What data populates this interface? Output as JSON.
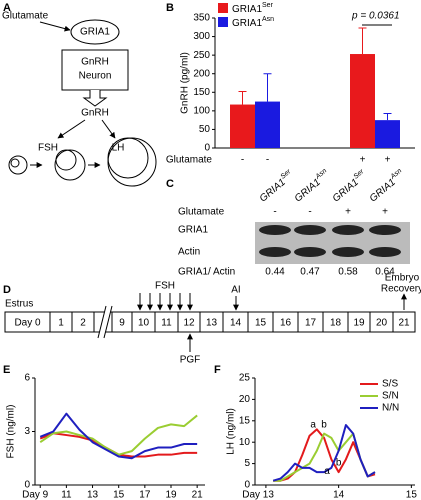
{
  "diagram": {
    "panel": "A",
    "glutamate": "Glutamate",
    "receptor": "GRIA1",
    "neuron": [
      "GnRH",
      "Neuron"
    ],
    "hormone": "GnRH",
    "outputs": [
      "FSH",
      "LH"
    ]
  },
  "chart_data": [
    {
      "type": "bar",
      "panel": "B",
      "ylabel": "GnRH (pg/ml)",
      "xlabel": "Glutamate",
      "categories": [
        "-",
        "+"
      ],
      "series": [
        {
          "name": "GRIA1",
          "name_sup": "Ser",
          "color": "#e8191c",
          "values": [
            117,
            253
          ],
          "errors": [
            35,
            70
          ]
        },
        {
          "name": "GRIA1",
          "name_sup": "Asn",
          "color": "#1a1ae0",
          "values": [
            125,
            75
          ],
          "errors": [
            75,
            18
          ]
        }
      ],
      "annotation": "p = 0.0361",
      "ylim": [
        0,
        350
      ],
      "yticks": [
        0,
        50,
        100,
        150,
        200,
        250,
        300,
        350
      ]
    },
    {
      "type": "line",
      "panel": "E",
      "ylabel": "FSH (ng/ml)",
      "x": [
        9,
        10,
        11,
        12,
        13,
        14,
        15,
        16,
        17,
        18,
        19,
        20,
        21
      ],
      "series": [
        {
          "color": "#e31a1c",
          "values": [
            2.6,
            2.9,
            2.8,
            2.7,
            2.5,
            2.1,
            1.7,
            1.6,
            1.6,
            1.7,
            1.7,
            1.8,
            1.8
          ]
        },
        {
          "color": "#9acd32",
          "values": [
            2.4,
            2.9,
            3.0,
            2.8,
            2.6,
            2.1,
            1.7,
            1.9,
            2.6,
            3.2,
            3.4,
            3.3,
            3.9
          ]
        },
        {
          "color": "#1f1fbf",
          "values": [
            2.7,
            3.0,
            4.0,
            3.1,
            2.4,
            2.0,
            1.6,
            1.5,
            1.9,
            2.1,
            2.1,
            2.3,
            2.3
          ]
        }
      ],
      "xlim": [
        8.6,
        21.6
      ],
      "xticks": [
        {
          "value": 9,
          "label": "Day 9"
        },
        11,
        13,
        15,
        17,
        19,
        21
      ],
      "ylim": [
        0,
        6
      ],
      "yticks": [
        0,
        3,
        6
      ]
    },
    {
      "type": "line",
      "panel": "F",
      "ylabel": "LH (ng/ml)",
      "x": [
        13.1,
        13.2,
        13.3,
        13.4,
        13.5,
        13.6,
        13.7,
        13.8,
        13.9,
        14.0,
        14.1,
        14.2,
        14.3,
        14.4,
        14.5
      ],
      "series": [
        {
          "name": "S/S",
          "color": "#e31a1c",
          "values": [
            1,
            1,
            1.5,
            3,
            7,
            11.5,
            13,
            11,
            6,
            3,
            6,
            10,
            6,
            2,
            2.5
          ]
        },
        {
          "name": "S/N",
          "color": "#9acd32",
          "values": [
            1,
            1,
            2,
            3,
            4,
            5,
            8,
            12,
            11,
            8,
            10,
            12,
            6,
            2,
            3
          ]
        },
        {
          "name": "N/N",
          "color": "#1f1fbf",
          "values": [
            1,
            1.5,
            3,
            5,
            4,
            4,
            3,
            3,
            4,
            8,
            14,
            12,
            6,
            2,
            3
          ]
        }
      ],
      "annotations": [
        "a",
        "b",
        "a",
        "b"
      ],
      "legend": "top-right",
      "xlim": [
        12.85,
        15.05
      ],
      "xticks": [
        {
          "value": 13,
          "label": "Day 13"
        },
        14,
        15
      ],
      "ylim": [
        0,
        25
      ],
      "yticks": [
        0,
        5,
        10,
        15,
        20,
        25
      ]
    }
  ],
  "blot": {
    "panel": "C",
    "lanes": [
      {
        "name": "GRIA1",
        "sup": "Ser"
      },
      {
        "name": "GRIA1",
        "sup": "Asn"
      },
      {
        "name": "GRIA1",
        "sup": "Ser"
      },
      {
        "name": "GRIA1",
        "sup": "Asn"
      }
    ],
    "treatment_label": "Glutamate",
    "treatment": [
      "-",
      "-",
      "+",
      "+"
    ],
    "rows": [
      "GRIA1",
      "Actin"
    ],
    "ratio_label": "GRIA1/ Actin",
    "ratios": [
      0.44,
      0.47,
      0.58,
      0.64
    ]
  },
  "timeline": {
    "panel": "D",
    "phase": "Estrus",
    "days": [
      "Day 0",
      "1",
      "2",
      "9",
      "10",
      "11",
      "12",
      "13",
      "14",
      "15",
      "16",
      "17",
      "18",
      "19",
      "20",
      "21"
    ],
    "fsh": "FSH",
    "pgf": "PGF",
    "ai": "AI",
    "recovery": [
      "Embryo",
      "Recovery"
    ]
  }
}
